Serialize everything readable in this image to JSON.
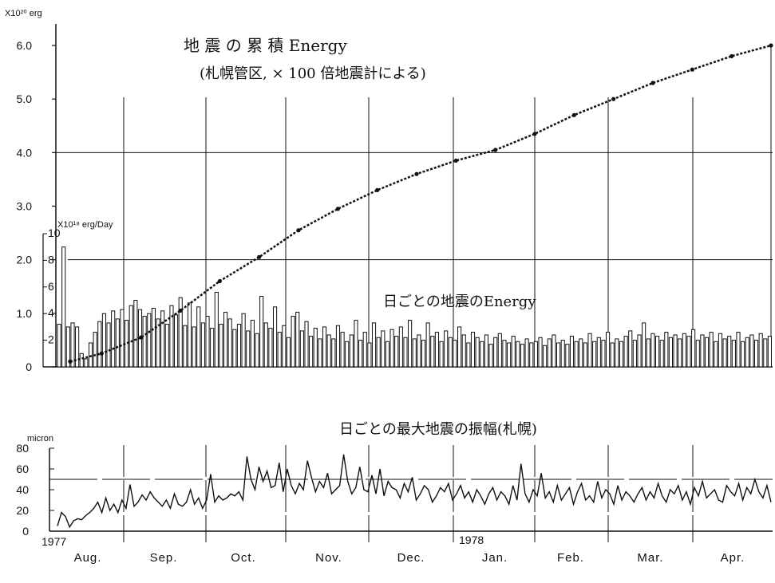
{
  "chart_data": [
    {
      "type": "line",
      "title": "地 震 の 累 積 Energy",
      "subtitle": "(札幌管区, × 100 倍地震計による)",
      "y_unit": "X10²⁰ erg",
      "ylim": [
        0,
        6.0
      ],
      "y_ticks": [
        "0",
        "1.0",
        "2.0",
        "3.0",
        "4.0",
        "5.0",
        "6.0"
      ],
      "grid": true,
      "series": [
        {
          "points": [
            [
              0.1,
              0.1
            ],
            [
              0.5,
              0.25
            ],
            [
              1.0,
              0.55
            ],
            [
              1.5,
              1.05
            ],
            [
              2.0,
              1.6
            ],
            [
              2.5,
              2.05
            ],
            [
              3.0,
              2.55
            ],
            [
              3.5,
              2.95
            ],
            [
              4.0,
              3.3
            ],
            [
              4.5,
              3.6
            ],
            [
              5.0,
              3.85
            ],
            [
              5.5,
              4.05
            ],
            [
              6.0,
              4.35
            ],
            [
              6.5,
              4.7
            ],
            [
              7.0,
              5.0
            ],
            [
              7.5,
              5.3
            ],
            [
              8.0,
              5.55
            ],
            [
              8.5,
              5.8
            ],
            [
              9.0,
              6.0
            ]
          ]
        }
      ]
    },
    {
      "type": "bar",
      "title": "日ごとの地震のEnergy",
      "y_unit": "X10¹⁸ erg/Day",
      "ylim": [
        0,
        10
      ],
      "y_ticks": [
        "2",
        "4",
        "6",
        "8",
        "10"
      ],
      "values": [
        3.2,
        9.0,
        3.0,
        3.3,
        3.0,
        1.0,
        0.6,
        1.8,
        2.6,
        3.4,
        4.0,
        3.3,
        4.2,
        3.6,
        4.3,
        3.5,
        4.6,
        5.0,
        4.3,
        3.8,
        4.0,
        4.4,
        3.6,
        4.2,
        3.2,
        4.6,
        3.9,
        5.2,
        3.1,
        4.8,
        3.0,
        4.5,
        3.3,
        3.8,
        2.9,
        5.6,
        3.2,
        4.1,
        3.6,
        2.8,
        3.2,
        4.0,
        2.7,
        3.5,
        2.5,
        5.3,
        3.3,
        2.9,
        4.5,
        2.6,
        3.1,
        2.2,
        3.8,
        4.1,
        2.7,
        3.4,
        2.3,
        2.9,
        2.1,
        3.0,
        2.4,
        2.1,
        3.1,
        2.6,
        1.9,
        2.4,
        3.5,
        2.0,
        2.6,
        1.8,
        3.3,
        2.2,
        2.7,
        1.9,
        2.8,
        2.3,
        3.0,
        2.2,
        3.5,
        2.1,
        2.4,
        2.0,
        3.3,
        2.3,
        2.6,
        1.9,
        2.7,
        2.2,
        2.0,
        3.0,
        2.4,
        1.8,
        2.6,
        2.2,
        1.9,
        2.4,
        1.7,
        2.2,
        2.5,
        2.0,
        1.8,
        2.3,
        1.9,
        1.7,
        2.1,
        1.8,
        1.9,
        2.2,
        1.6,
        2.1,
        2.4,
        1.8,
        2.0,
        1.7,
        2.3,
        1.9,
        2.1,
        1.8,
        2.5,
        1.9,
        2.2,
        2.0,
        2.6,
        1.8,
        2.1,
        1.9,
        2.3,
        2.7,
        2.0,
        2.4,
        3.3,
        2.1,
        2.5,
        2.3,
        2.0,
        2.6,
        2.2,
        2.4,
        2.1,
        2.5,
        2.3,
        2.8,
        2.0,
        2.4,
        2.2,
        2.6,
        1.9,
        2.5,
        2.1,
        2.3,
        2.0,
        2.6,
        1.9,
        2.2,
        2.4,
        2.0,
        2.5,
        2.1,
        2.3
      ],
      "xlabels": [
        "Aug.",
        "Sep.",
        "Oct.",
        "Nov.",
        "Dec.",
        "Jan.",
        "Feb.",
        "Mar.",
        "Apr."
      ]
    },
    {
      "type": "line",
      "title": "日ごとの最大地震の振幅(札幌)",
      "y_unit": "micron",
      "ylim": [
        0,
        80
      ],
      "y_ticks": [
        "0",
        "20",
        "40",
        "60",
        "80"
      ],
      "year_labels": [
        "1977",
        "1978"
      ],
      "xlabels": [
        "Aug.",
        "Sep.",
        "Oct.",
        "Nov.",
        "Dec.",
        "Jan.",
        "Feb.",
        "Mar.",
        "Apr."
      ],
      "reference_line": 50,
      "values": [
        5,
        18,
        14,
        4,
        10,
        12,
        11,
        15,
        18,
        22,
        28,
        18,
        32,
        20,
        26,
        18,
        30,
        22,
        45,
        24,
        28,
        35,
        30,
        38,
        32,
        28,
        24,
        30,
        22,
        36,
        26,
        24,
        28,
        40,
        26,
        32,
        22,
        30,
        55,
        28,
        34,
        30,
        32,
        36,
        34,
        38,
        30,
        72,
        50,
        40,
        62,
        48,
        58,
        42,
        44,
        66,
        38,
        60,
        44,
        36,
        46,
        40,
        68,
        52,
        38,
        48,
        42,
        56,
        36,
        40,
        44,
        74,
        48,
        36,
        42,
        62,
        40,
        38,
        54,
        36,
        60,
        34,
        48,
        42,
        40,
        32,
        46,
        38,
        52,
        30,
        36,
        44,
        40,
        28,
        34,
        42,
        38,
        46,
        30,
        36,
        44,
        32,
        38,
        28,
        40,
        34,
        26,
        36,
        42,
        30,
        38,
        34,
        26,
        44,
        30,
        65,
        36,
        28,
        40,
        34,
        56,
        32,
        38,
        28,
        44,
        30,
        36,
        42,
        26,
        38,
        46,
        30,
        34,
        28,
        48,
        32,
        40,
        36,
        26,
        44,
        30,
        38,
        34,
        28,
        36,
        42,
        30,
        38,
        32,
        46,
        34,
        28,
        40,
        36,
        44,
        30,
        38,
        26,
        42,
        34,
        48,
        32,
        36,
        40,
        30,
        28,
        44,
        38,
        34,
        46,
        30,
        42,
        36,
        50,
        38,
        32,
        44,
        28
      ]
    }
  ]
}
